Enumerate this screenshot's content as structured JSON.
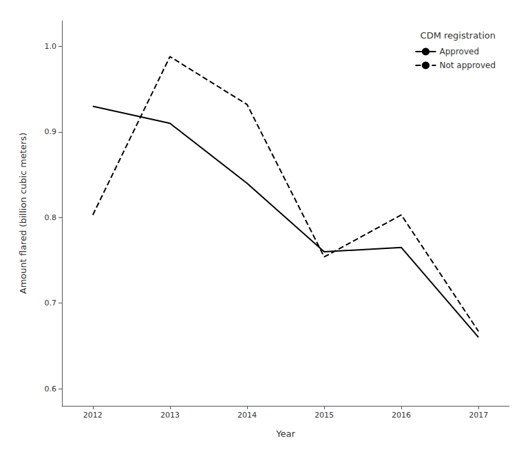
{
  "chart_data": {
    "type": "line",
    "x": [
      2012,
      2013,
      2014,
      2015,
      2016,
      2017
    ],
    "series": [
      {
        "name": "Approved",
        "color": "#000000",
        "line_style": "solid",
        "values": [
          0.93,
          0.91,
          0.84,
          0.76,
          0.765,
          0.66
        ]
      },
      {
        "name": "Not approved",
        "color": "#000000",
        "line_style": "dashed",
        "values": [
          0.803,
          0.988,
          0.932,
          0.754,
          0.803,
          0.667
        ]
      }
    ],
    "xlabel": "Year",
    "ylabel": "Amount flared (billion cubic meters)",
    "legend_title": "CDM registration",
    "xlim": [
      2011.6,
      2017.4
    ],
    "xticks": [
      2012,
      2013,
      2014,
      2015,
      2016,
      2017
    ],
    "ylim": [
      0.58,
      1.03
    ],
    "yticks": [
      0.6,
      0.7,
      0.8,
      0.9,
      {
        "value": 1.0,
        "label": "1.0"
      }
    ],
    "grid": false,
    "legend": "upper right"
  }
}
